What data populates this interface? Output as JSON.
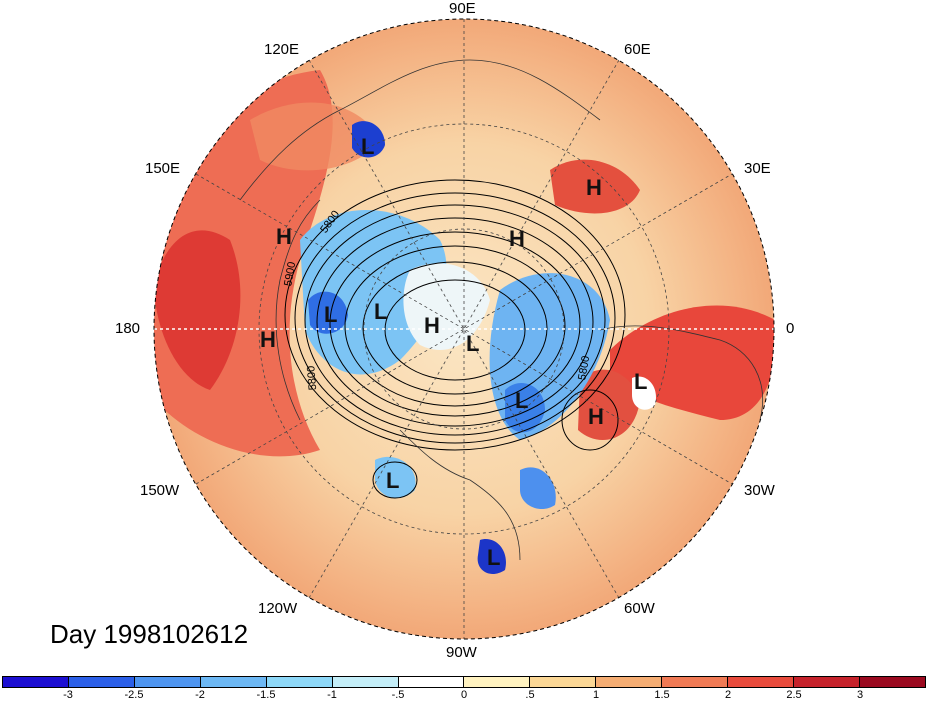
{
  "map": {
    "longitude_labels": [
      {
        "id": "90e",
        "text": "90E"
      },
      {
        "id": "60e",
        "text": "60E"
      },
      {
        "id": "120e",
        "text": "120E"
      },
      {
        "id": "30e",
        "text": "30E"
      },
      {
        "id": "150e",
        "text": "150E"
      },
      {
        "id": "0",
        "text": "0"
      },
      {
        "id": "180",
        "text": "180"
      },
      {
        "id": "30w",
        "text": "30W"
      },
      {
        "id": "150w",
        "text": "150W"
      },
      {
        "id": "60w",
        "text": "60W"
      },
      {
        "id": "120w",
        "text": "120W"
      },
      {
        "id": "90w",
        "text": "90W"
      }
    ],
    "contour_labels": [
      "5800",
      "5900",
      "5800",
      "5800"
    ],
    "pressure_centers": [
      "L",
      "H",
      "H",
      "H",
      "H",
      "H",
      "L",
      "L",
      "H",
      "L",
      "L",
      "L",
      "H",
      "L",
      "L"
    ],
    "day_label": "Day 1998102612"
  },
  "colorbar": {
    "colors": [
      "#1c0fd2",
      "#2b5fe8",
      "#4e95f0",
      "#6db8f4",
      "#8ed8f8",
      "#c4eef8",
      "#ffffff",
      "#fff2c0",
      "#fbd796",
      "#f5ad73",
      "#f07a55",
      "#e84b3c",
      "#c6222b",
      "#9b0a20"
    ],
    "ticks": [
      "-3",
      "-2.5",
      "-2",
      "-1.5",
      "-1",
      "-.5",
      "0",
      ".5",
      "1",
      "1.5",
      "2",
      "2.5",
      "3"
    ]
  }
}
